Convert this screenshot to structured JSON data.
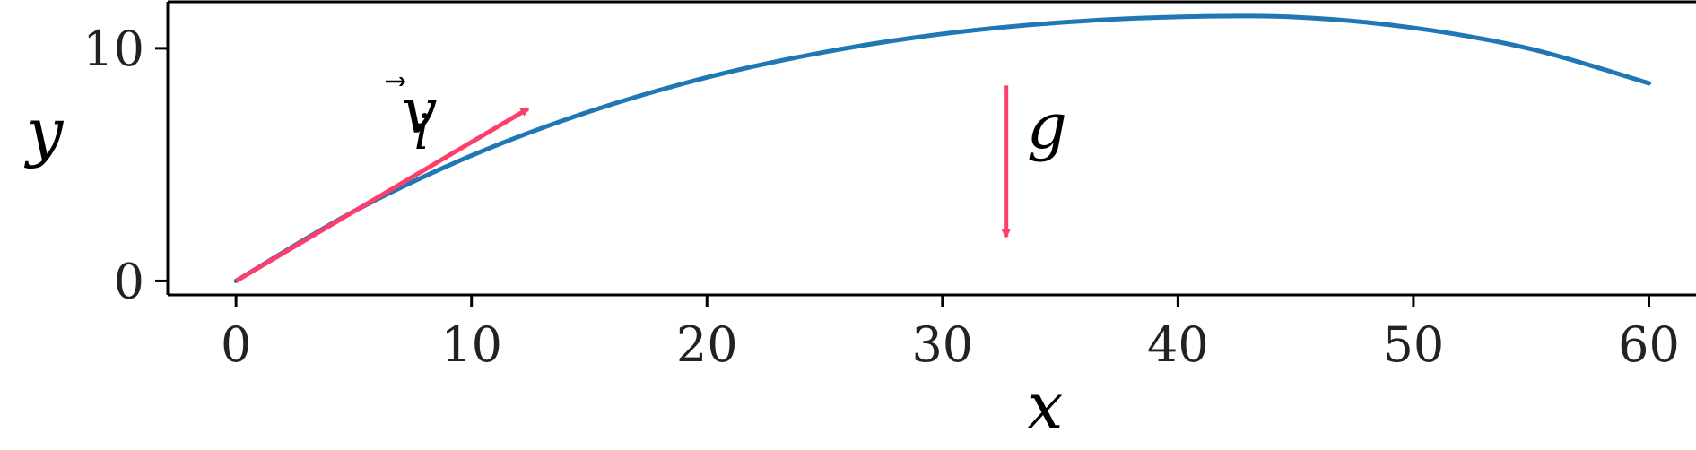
{
  "chart_data": {
    "type": "line",
    "title": "",
    "xlabel": "x",
    "ylabel": "y",
    "xlim": [
      -2.9,
      62
    ],
    "ylim": [
      -0.6,
      12
    ],
    "x_ticks": [
      "0",
      "10",
      "20",
      "30",
      "40",
      "50",
      "60"
    ],
    "y_ticks": [
      "0",
      "10"
    ],
    "x_tick_values": [
      0,
      10,
      20,
      30,
      40,
      50,
      60
    ],
    "y_tick_values": [
      0,
      10
    ],
    "series": [
      {
        "color": "#1f77b4",
        "x": [
          0,
          5,
          10,
          15,
          20,
          25,
          30,
          35,
          40,
          45,
          50,
          55,
          60
        ],
        "y": [
          0,
          2.99,
          5.39,
          7.28,
          8.75,
          9.84,
          10.62,
          11.11,
          11.35,
          11.34,
          10.88,
          9.97,
          8.5
        ]
      }
    ],
    "annotations": {
      "velocity": {
        "base": "v",
        "arrow": "⃗",
        "sub": "i",
        "color": "#ff3d6b",
        "from": [
          0,
          0
        ],
        "to": [
          12.4,
          7.4
        ]
      },
      "gravity": {
        "label": "g",
        "color": "#ff3d6b",
        "from": [
          32.7,
          8.4
        ],
        "to": [
          32.7,
          1.9
        ]
      }
    },
    "grid": false,
    "legend": "none"
  }
}
